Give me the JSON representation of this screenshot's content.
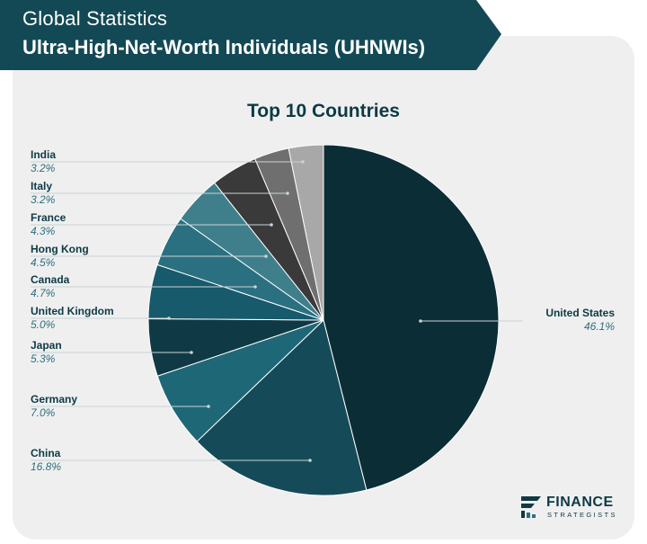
{
  "header": {
    "title_line1": "Global Statistics",
    "title_line2": "Ultra-High-Net-Worth Individuals (UHNWIs)"
  },
  "brand": {
    "line1": "FINANCE",
    "line2": "STRATEGISTS"
  },
  "colors": {
    "banner": "#134955",
    "heading": "#0d3a45",
    "percent_text": "#2b6f7e",
    "leader_line": "#c9d3d5"
  },
  "chart_data": {
    "type": "pie",
    "title": "Top 10 Countries",
    "start": "12 o'clock, clockwise",
    "slices": [
      {
        "label": "United States",
        "value": 46.1,
        "value_label": "46.1%",
        "color": "#0b2d36"
      },
      {
        "label": "China",
        "value": 16.8,
        "value_label": "16.8%",
        "color": "#154b58"
      },
      {
        "label": "Germany",
        "value": 7.0,
        "value_label": "7.0%",
        "color": "#1e6777"
      },
      {
        "label": "Japan",
        "value": 5.3,
        "value_label": "5.3%",
        "color": "#0f3a45"
      },
      {
        "label": "United Kingdom",
        "value": 5.0,
        "value_label": "5.0%",
        "color": "#165a6b"
      },
      {
        "label": "Canada",
        "value": 4.7,
        "value_label": "4.7%",
        "color": "#2a7080"
      },
      {
        "label": "Hong Kong",
        "value": 4.5,
        "value_label": "4.5%",
        "color": "#3f7f8c"
      },
      {
        "label": "France",
        "value": 4.3,
        "value_label": "4.3%",
        "color": "#3a3a3a"
      },
      {
        "label": "Italy",
        "value": 3.2,
        "value_label": "3.2%",
        "color": "#6f6f6f"
      },
      {
        "label": "India",
        "value": 3.2,
        "value_label": "3.2%",
        "color": "#a8a8a8"
      }
    ]
  }
}
